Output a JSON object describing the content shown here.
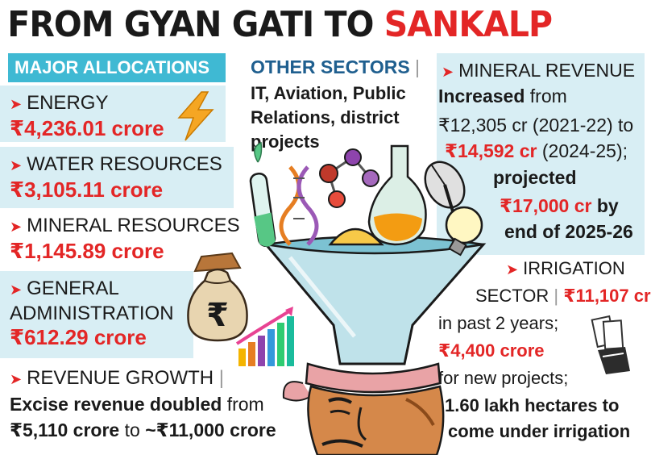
{
  "title": {
    "part1": "FROM GYAN GATI TO",
    "part2": "SANKALP"
  },
  "major_allocations": {
    "heading": "MAJOR ALLOCATIONS",
    "energy": {
      "label": "ENERGY",
      "value": "₹4,236.01 crore"
    },
    "water": {
      "label": "WATER RESOURCES",
      "value": "₹3,105.11 crore"
    },
    "mineral": {
      "label": "MINERAL RESOURCES",
      "value": "₹1,145.89 crore"
    },
    "general": {
      "label1": "GENERAL",
      "label2": "ADMINISTRATION",
      "value": "₹612.29 crore"
    }
  },
  "revenue_growth": {
    "label": "REVENUE GROWTH",
    "bold": "Excise revenue doubled",
    "from": "from",
    "v1": "₹5,110 crore",
    "to": "to",
    "v2": "~₹11,000 crore"
  },
  "other_sectors": {
    "heading": "OTHER SECTORS",
    "line1": "IT, Aviation, Public",
    "line2": "Relations, district",
    "line3": "projects"
  },
  "mineral_revenue": {
    "heading": "MINERAL REVENUE",
    "increased": "Increased",
    "from": "from",
    "v1": "₹12,305 cr",
    "y1": "(2021-22) to",
    "v2": "₹14,592 cr",
    "y2": "(2024-25);",
    "projected": "projected",
    "v3": "₹17,000 cr",
    "by": "by",
    "end": "end of 2025-26"
  },
  "irrigation": {
    "heading": "IRRIGATION",
    "sector": "SECTOR",
    "value": "₹11,107 cr",
    "past": "in past 2 years;",
    "v2": "₹4,400 crore",
    "new": "for new projects;",
    "l1": "1.60 lakh hectares to",
    "l2": "come under irrigation"
  },
  "icons": {
    "bolt": "lightning-bolt-icon",
    "bag": "rupee-money-bag-icon",
    "growth": "growth-bar-chart-icon",
    "money": "cash-hand-icon"
  },
  "colors": {
    "accent": "#e32626",
    "header_bg": "#3fb9d3",
    "band_bg": "#d8eef4",
    "other_heading": "#1f5f8f"
  }
}
